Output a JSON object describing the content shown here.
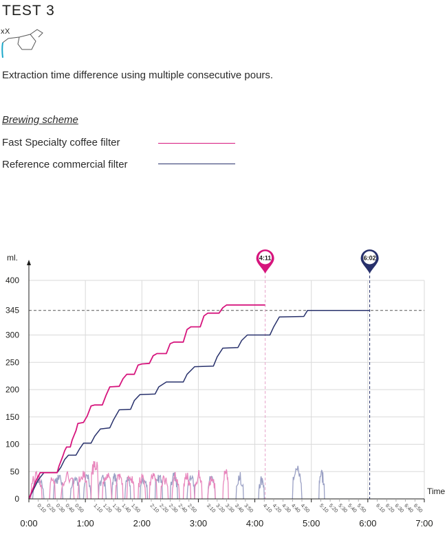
{
  "page": {
    "title": "TEST 3",
    "logo_text": "xX",
    "description": "Extraction time difference using multiple consecutive pours.",
    "scheme_heading": "Brewing scheme"
  },
  "legend": [
    {
      "label": "Fast Specialty coffee filter",
      "color": "#d6157d"
    },
    {
      "label": "Reference commercial filter",
      "color": "#27306b"
    }
  ],
  "colors": {
    "fast": "#d6157d",
    "fast_flow": "#e887bd",
    "reference": "#27306b",
    "reference_flow": "#9aa0c4",
    "grid": "#d9d9d9",
    "axis": "#1d1d1b",
    "ref_line": "#555555"
  },
  "chart_data": {
    "type": "line",
    "ylabel": "ml.",
    "xlabel": "Time",
    "xlim_seconds": [
      0,
      420
    ],
    "ylim": [
      0,
      400
    ],
    "y_ticks": [
      0,
      50,
      100,
      150,
      200,
      250,
      300,
      400
    ],
    "y_reference": {
      "value": 345,
      "label": "345"
    },
    "minor_ticks_seconds": [
      10,
      20,
      30,
      40,
      50,
      70,
      80,
      90,
      100,
      110,
      130,
      140,
      150,
      160,
      170,
      190,
      200,
      210,
      220,
      230,
      250,
      260,
      270,
      280,
      290,
      310,
      320,
      330,
      340,
      350,
      370,
      380,
      390,
      400,
      410
    ],
    "minor_tick_labels": [
      "0:10",
      "0:20",
      "0:30",
      "0:40",
      "0:50",
      "1:10",
      "1:20",
      "1:30",
      "1:40",
      "1:50",
      "2:10",
      "2:20",
      "2:30",
      "2:40",
      "2:50",
      "3:10",
      "3:20",
      "3:30",
      "3:40",
      "3:50",
      "4:10",
      "4:20",
      "4:30",
      "4:40",
      "4:50",
      "5:10",
      "5:20",
      "5:30",
      "5:40",
      "5:50",
      "6:10",
      "6:20",
      "6:30",
      "6:40",
      "6:50"
    ],
    "major_ticks_seconds": [
      0,
      60,
      120,
      180,
      240,
      300,
      360,
      420
    ],
    "major_tick_labels": [
      "0:00",
      "1:00",
      "2:00",
      "3:00",
      "4:00",
      "5:00",
      "6:00",
      "7:00"
    ],
    "markers": [
      {
        "series": "fast",
        "time_seconds": 251,
        "label": "4:11"
      },
      {
        "series": "reference",
        "time_seconds": 362,
        "label": "6:02"
      }
    ],
    "series": [
      {
        "name": "Fast Specialty coffee filter",
        "key": "fast",
        "points": [
          [
            0,
            0
          ],
          [
            8,
            35
          ],
          [
            12,
            48
          ],
          [
            20,
            48
          ],
          [
            30,
            48
          ],
          [
            32,
            60
          ],
          [
            36,
            78
          ],
          [
            38,
            88
          ],
          [
            40,
            95
          ],
          [
            44,
            95
          ],
          [
            46,
            108
          ],
          [
            50,
            125
          ],
          [
            52,
            138
          ],
          [
            58,
            140
          ],
          [
            62,
            152
          ],
          [
            66,
            170
          ],
          [
            70,
            172
          ],
          [
            78,
            172
          ],
          [
            82,
            190
          ],
          [
            86,
            205
          ],
          [
            96,
            206
          ],
          [
            100,
            220
          ],
          [
            104,
            228
          ],
          [
            112,
            228
          ],
          [
            116,
            245
          ],
          [
            120,
            247
          ],
          [
            128,
            248
          ],
          [
            132,
            262
          ],
          [
            136,
            266
          ],
          [
            146,
            266
          ],
          [
            150,
            284
          ],
          [
            154,
            287
          ],
          [
            164,
            287
          ],
          [
            168,
            310
          ],
          [
            172,
            315
          ],
          [
            182,
            315
          ],
          [
            186,
            335
          ],
          [
            190,
            340
          ],
          [
            202,
            340
          ],
          [
            206,
            350
          ],
          [
            210,
            355
          ],
          [
            225,
            355
          ],
          [
            251,
            355
          ]
        ]
      },
      {
        "name": "Reference commercial filter",
        "key": "reference",
        "points": [
          [
            0,
            0
          ],
          [
            10,
            35
          ],
          [
            16,
            48
          ],
          [
            30,
            48
          ],
          [
            34,
            58
          ],
          [
            38,
            72
          ],
          [
            42,
            80
          ],
          [
            50,
            80
          ],
          [
            54,
            92
          ],
          [
            58,
            102
          ],
          [
            66,
            102
          ],
          [
            70,
            115
          ],
          [
            76,
            128
          ],
          [
            86,
            130
          ],
          [
            90,
            145
          ],
          [
            96,
            163
          ],
          [
            108,
            164
          ],
          [
            112,
            180
          ],
          [
            118,
            191
          ],
          [
            134,
            192
          ],
          [
            138,
            205
          ],
          [
            146,
            214
          ],
          [
            164,
            214
          ],
          [
            168,
            228
          ],
          [
            176,
            242
          ],
          [
            196,
            243
          ],
          [
            200,
            260
          ],
          [
            206,
            276
          ],
          [
            222,
            277
          ],
          [
            226,
            290
          ],
          [
            232,
            300
          ],
          [
            256,
            300
          ],
          [
            260,
            315
          ],
          [
            266,
            333
          ],
          [
            292,
            334
          ],
          [
            296,
            345
          ],
          [
            310,
            345
          ],
          [
            362,
            345
          ]
        ]
      },
      {
        "name": "Fast filter flow",
        "key": "fast_flow",
        "bursts": [
          [
            2,
            14,
            52
          ],
          [
            22,
            28,
            45
          ],
          [
            34,
            48,
            55
          ],
          [
            52,
            62,
            58
          ],
          [
            66,
            74,
            88
          ],
          [
            78,
            88,
            52
          ],
          [
            92,
            100,
            50
          ],
          [
            104,
            112,
            55
          ],
          [
            116,
            124,
            50
          ],
          [
            128,
            136,
            52
          ],
          [
            140,
            148,
            48
          ],
          [
            152,
            160,
            52
          ],
          [
            164,
            172,
            50
          ],
          [
            176,
            184,
            54
          ],
          [
            190,
            198,
            48
          ],
          [
            206,
            212,
            62
          ]
        ]
      },
      {
        "name": "Reference filter flow",
        "key": "reference_flow",
        "bursts": [
          [
            4,
            16,
            48
          ],
          [
            26,
            36,
            50
          ],
          [
            44,
            54,
            46
          ],
          [
            58,
            66,
            48
          ],
          [
            74,
            82,
            45
          ],
          [
            88,
            94,
            50
          ],
          [
            102,
            108,
            44
          ],
          [
            118,
            126,
            48
          ],
          [
            134,
            142,
            52
          ],
          [
            150,
            158,
            50
          ],
          [
            168,
            176,
            48
          ],
          [
            190,
            198,
            52
          ],
          [
            220,
            228,
            50
          ],
          [
            244,
            250,
            42
          ],
          [
            280,
            290,
            68
          ],
          [
            308,
            314,
            55
          ]
        ]
      }
    ]
  }
}
